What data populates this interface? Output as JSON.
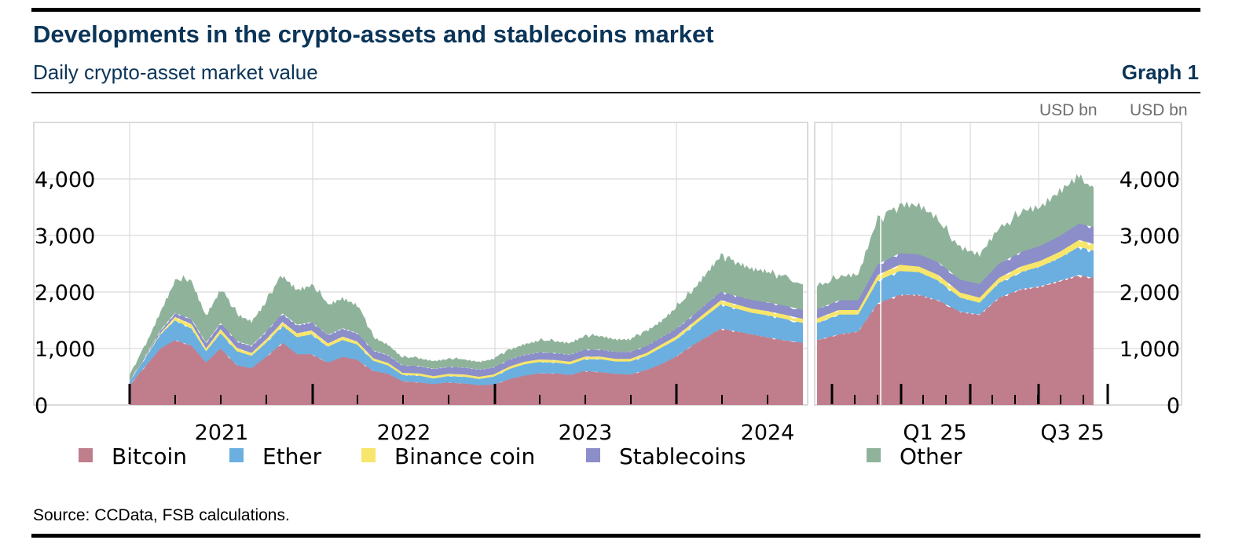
{
  "header": {
    "title": "Developments in the crypto-assets and stablecoins market",
    "subtitle": "Daily crypto-asset market value",
    "graph_label": "Graph 1",
    "unit_left": "USD bn",
    "unit_right": "USD bn"
  },
  "footer": {
    "source": "Source: CCData, FSB calculations."
  },
  "chart_data": [
    {
      "type": "area",
      "stacked": true,
      "panel": "2021–2024",
      "xlabel": "",
      "ylabel": "USD bn",
      "ylim": [
        0,
        5000
      ],
      "yticks": [
        0,
        1000,
        2000,
        3000,
        4000
      ],
      "ytick_labels": [
        "0",
        "1,000",
        "2,000",
        "3,000",
        "4,000"
      ],
      "x_range": [
        2020.83,
        2024.53
      ],
      "xticks": [
        2021.0,
        2022.0,
        2023.0,
        2024.0
      ],
      "xtick_labels": [
        "2021",
        "2022",
        "2023",
        "2024"
      ],
      "grid": true,
      "x": [
        2020.83,
        2020.92,
        2021.0,
        2021.08,
        2021.17,
        2021.25,
        2021.33,
        2021.42,
        2021.5,
        2021.58,
        2021.67,
        2021.75,
        2021.83,
        2021.92,
        2022.0,
        2022.08,
        2022.17,
        2022.25,
        2022.33,
        2022.42,
        2022.5,
        2022.58,
        2022.67,
        2022.75,
        2022.83,
        2022.92,
        2023.0,
        2023.08,
        2023.17,
        2023.25,
        2023.33,
        2023.42,
        2023.5,
        2023.58,
        2023.67,
        2023.75,
        2023.83,
        2023.92,
        2024.0,
        2024.08,
        2024.17,
        2024.25,
        2024.33,
        2024.42,
        2024.53
      ],
      "series": [
        {
          "name": "Bitcoin",
          "color": "#c07e8d",
          "values": [
            350,
            700,
            1000,
            1150,
            1050,
            750,
            1000,
            700,
            650,
            850,
            1100,
            900,
            900,
            750,
            850,
            800,
            600,
            550,
            420,
            400,
            370,
            400,
            380,
            350,
            360,
            460,
            520,
            560,
            560,
            530,
            600,
            580,
            550,
            540,
            620,
            720,
            850,
            1050,
            1200,
            1350,
            1300,
            1250,
            1200,
            1150,
            1100
          ]
        },
        {
          "name": "Ether",
          "color": "#6aafe0",
          "values": [
            70,
            150,
            250,
            350,
            300,
            200,
            270,
            250,
            220,
            250,
            300,
            300,
            350,
            280,
            300,
            270,
            180,
            150,
            110,
            120,
            100,
            110,
            120,
            110,
            140,
            180,
            200,
            200,
            190,
            190,
            210,
            230,
            220,
            230,
            250,
            290,
            300,
            330,
            380,
            430,
            400,
            380,
            390,
            380,
            350
          ]
        },
        {
          "name": "Binance coin",
          "color": "#f7e66b",
          "values": [
            10,
            15,
            25,
            60,
            80,
            50,
            70,
            60,
            50,
            60,
            70,
            70,
            70,
            60,
            60,
            55,
            45,
            45,
            40,
            40,
            40,
            40,
            40,
            40,
            40,
            45,
            45,
            45,
            45,
            45,
            45,
            45,
            45,
            45,
            50,
            55,
            60,
            60,
            70,
            75,
            75,
            75,
            75,
            75,
            75
          ]
        },
        {
          "name": "Stablecoins",
          "color": "#8b8ec9",
          "values": [
            20,
            30,
            50,
            70,
            90,
            100,
            110,
            120,
            130,
            140,
            150,
            150,
            150,
            150,
            150,
            150,
            140,
            140,
            130,
            130,
            130,
            125,
            125,
            125,
            125,
            125,
            125,
            125,
            125,
            125,
            125,
            125,
            125,
            125,
            125,
            125,
            130,
            130,
            140,
            150,
            150,
            155,
            155,
            160,
            160
          ]
        },
        {
          "name": "Other",
          "color": "#8fb39a",
          "values": [
            80,
            200,
            350,
            600,
            700,
            500,
            620,
            500,
            450,
            550,
            700,
            650,
            680,
            560,
            560,
            520,
            250,
            200,
            150,
            150,
            150,
            150,
            150,
            150,
            160,
            180,
            200,
            220,
            220,
            220,
            250,
            250,
            230,
            230,
            270,
            300,
            380,
            450,
            550,
            650,
            600,
            550,
            550,
            500,
            450
          ]
        }
      ]
    },
    {
      "type": "area",
      "stacked": true,
      "panel": "2024–2025",
      "xlabel": "",
      "ylabel": "USD bn",
      "ylim": [
        0,
        5000
      ],
      "yticks": [
        0,
        1000,
        2000,
        3000,
        4000
      ],
      "ytick_labels": [
        "0",
        "1,000",
        "2,000",
        "3,000",
        "4,000"
      ],
      "x_range": [
        2024.58,
        2025.72
      ],
      "xticks": [
        2025.0,
        2025.5
      ],
      "xtick_labels": [
        "Q1 25",
        "Q3 25"
      ],
      "grid": true,
      "x": [
        2024.58,
        2024.67,
        2024.75,
        2024.83,
        2024.92,
        2025.0,
        2025.08,
        2025.17,
        2025.25,
        2025.33,
        2025.42,
        2025.5,
        2025.58,
        2025.66,
        2025.72
      ],
      "series": [
        {
          "name": "Bitcoin",
          "color": "#c07e8d",
          "values": [
            1150,
            1250,
            1300,
            1800,
            1950,
            1950,
            1850,
            1650,
            1600,
            1900,
            2050,
            2100,
            2200,
            2300,
            2250
          ]
        },
        {
          "name": "Ether",
          "color": "#6aafe0",
          "values": [
            300,
            350,
            300,
            400,
            420,
            400,
            350,
            250,
            210,
            260,
            300,
            350,
            400,
            500,
            480
          ]
        },
        {
          "name": "Binance coin",
          "color": "#f7e66b",
          "values": [
            80,
            80,
            80,
            100,
            110,
            100,
            100,
            90,
            90,
            90,
            100,
            100,
            110,
            120,
            120
          ]
        },
        {
          "name": "Stablecoins",
          "color": "#8b8ec9",
          "values": [
            165,
            170,
            175,
            190,
            205,
            215,
            225,
            230,
            240,
            250,
            255,
            265,
            280,
            290,
            300
          ]
        },
        {
          "name": "Other",
          "color": "#8fb39a",
          "values": [
            400,
            420,
            450,
            800,
            850,
            850,
            750,
            550,
            500,
            600,
            700,
            650,
            750,
            800,
            700
          ]
        }
      ]
    }
  ],
  "legend": [
    {
      "label": "Bitcoin",
      "color": "#c07e8d"
    },
    {
      "label": "Ether",
      "color": "#6aafe0"
    },
    {
      "label": "Binance coin",
      "color": "#f7e66b"
    },
    {
      "label": "Stablecoins",
      "color": "#8b8ec9"
    },
    {
      "label": "Other",
      "color": "#8fb39a"
    }
  ]
}
